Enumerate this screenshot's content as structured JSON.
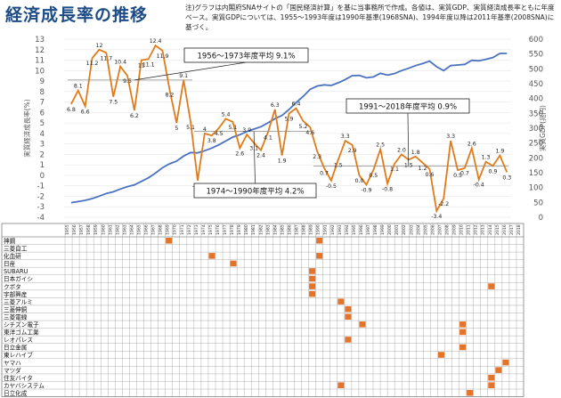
{
  "title": "経済成長率の推移",
  "note": "注)グラフは内閣府SNAサイトの「国民経済計算」を基に当事務所で作成。各値は、実質GDP、実質経済成長率ともに年度ベース。実質GDPについては、1955～1993年度は1990年基準(1968SNA)、1994年度以降は2011年基準(2008SNA)に基づく。",
  "chart_data": {
    "type": "line",
    "x": [
      1956,
      1957,
      1958,
      1959,
      1960,
      1961,
      1962,
      1963,
      1964,
      1965,
      1966,
      1967,
      1968,
      1969,
      1970,
      1971,
      1972,
      1973,
      1974,
      1975,
      1976,
      1977,
      1978,
      1979,
      1980,
      1981,
      1982,
      1983,
      1984,
      1985,
      1986,
      1987,
      1988,
      1989,
      1990,
      1991,
      1992,
      1993,
      1994,
      1995,
      1996,
      1997,
      1998,
      1999,
      2000,
      2001,
      2002,
      2003,
      2004,
      2005,
      2006,
      2007,
      2008,
      2009,
      2010,
      2011,
      2012,
      2013,
      2014,
      2015,
      2016,
      2017,
      2018
    ],
    "series": [
      {
        "name": "growth",
        "axis": "left",
        "color": "#e07b1a",
        "values": [
          6.8,
          8.1,
          6.6,
          11.2,
          12.0,
          11.7,
          7.5,
          10.4,
          9.5,
          6.2,
          11.0,
          11.1,
          12.4,
          11.9,
          8.2,
          5.0,
          9.1,
          5.1,
          -0.5,
          4.0,
          3.8,
          4.5,
          5.4,
          5.1,
          2.6,
          3.9,
          3.1,
          2.4,
          4.1,
          6.3,
          1.9,
          5.9,
          6.4,
          5.2,
          4.6,
          2.3,
          0.7,
          -0.5,
          1.5,
          3.3,
          2.9,
          0.0,
          -0.9,
          0.5,
          2.5,
          -0.8,
          1.1,
          2.0,
          1.5,
          1.8,
          1.2,
          0.6,
          -3.4,
          -2.2,
          3.3,
          0.5,
          0.7,
          2.6,
          -0.4,
          1.3,
          0.9,
          1.9,
          0.3
        ]
      },
      {
        "name": "gdp",
        "axis": "right",
        "color": "#4a72c2",
        "values": [
          49,
          53,
          57,
          63,
          71,
          80,
          86,
          95,
          103,
          109,
          121,
          133,
          149,
          167,
          180,
          189,
          206,
          218,
          217,
          224,
          233,
          244,
          257,
          270,
          278,
          289,
          297,
          305,
          318,
          332,
          343,
          363,
          386,
          407,
          431,
          442,
          446,
          444,
          453,
          464,
          477,
          478,
          470,
          473,
          485,
          479,
          484,
          494,
          502,
          511,
          518,
          526,
          507,
          494,
          511,
          513,
          515,
          529,
          527,
          532,
          538,
          552,
          552
        ],
        "labels_shown": false
      }
    ],
    "data_labels": [
      "6.8",
      "8.1",
      "6.6",
      "11.2",
      "12",
      "11.7",
      "7.5",
      "10.4",
      "9.5",
      "6.2",
      "11",
      "11.1",
      "12.4",
      "11.9",
      "8.2",
      "5",
      "9.1",
      "5.1",
      "-0.5",
      "4",
      "3.8",
      "4.5",
      "5.4",
      "5.1",
      "2.6",
      "3.9",
      "3.1",
      "2.4",
      "4.1",
      "6.3",
      "1.9",
      "5.9",
      "6.4",
      "5.2",
      "4.6",
      "2.3",
      "0.7",
      "-0.5",
      "1.5",
      "3.3",
      "2.9",
      "0.0",
      "-0.9",
      "0.5",
      "2.5",
      "-0.8",
      "1.1",
      "2.0",
      "1.5",
      "1.8",
      "1.2",
      "0.6",
      "-3.4",
      "-2.2",
      "3.3",
      "0.5",
      "0.7",
      "2.6",
      "-0.4",
      "1.3",
      "0.9",
      "1.9",
      "0.3"
    ],
    "left_axis": {
      "label": "実質経済成長率(%)",
      "ylim": [
        -4,
        13
      ],
      "ticks": [
        "-4",
        "-3",
        "-2",
        "-1",
        "0",
        "1",
        "2",
        "3",
        "4",
        "5",
        "6",
        "7",
        "8",
        "9",
        "10",
        "11",
        "12",
        "13"
      ]
    },
    "right_axis": {
      "label": "実質GDP(兆円)",
      "ylim": [
        0,
        600
      ],
      "ticks": [
        "0",
        "50",
        "100",
        "150",
        "200",
        "250",
        "300",
        "350",
        "400",
        "450",
        "500",
        "550",
        "600"
      ]
    },
    "period_averages": [
      {
        "label": "1956～1973年度平均",
        "value": "9.1%",
        "avg": 9.1,
        "from": 1956,
        "to": 1973
      },
      {
        "label": "1974～1990年度平均",
        "value": "4.2%",
        "avg": 4.2,
        "from": 1974,
        "to": 1990
      },
      {
        "label": "1991～2018年度平均",
        "value": "0.9%",
        "avg": 0.9,
        "from": 1991,
        "to": 2018
      }
    ]
  },
  "company_grid": {
    "years": [
      "1955",
      "1956",
      "1957",
      "1958",
      "1959",
      "1960",
      "1961",
      "1962",
      "1963",
      "1964",
      "1965",
      "1966",
      "1967",
      "1968",
      "1969",
      "1970",
      "1971",
      "1972",
      "1973",
      "1974",
      "1975",
      "1976",
      "1977",
      "1978",
      "1979",
      "1980",
      "1981",
      "1982",
      "1983",
      "1984",
      "1985",
      "1986",
      "1987",
      "1988",
      "1989",
      "1990",
      "1991",
      "1992",
      "1993",
      "1994",
      "1995",
      "1996",
      "1997",
      "1998",
      "1999",
      "2000",
      "2001",
      "2002",
      "2003",
      "2004",
      "2005",
      "2006",
      "2007",
      "2008",
      "2009",
      "2010",
      "2011",
      "2012",
      "2013",
      "2014",
      "2015",
      "2016",
      "2017",
      "2018"
    ],
    "mark_color": "#e4742a",
    "companies": [
      {
        "name": "神鋼",
        "marks": [
          "1969",
          "1990"
        ]
      },
      {
        "name": "三菱自工",
        "marks": []
      },
      {
        "name": "化血研",
        "marks": [
          "1975",
          "1990"
        ]
      },
      {
        "name": "日産",
        "marks": [
          "1978"
        ]
      },
      {
        "name": "SUBARU",
        "marks": [
          "1989"
        ]
      },
      {
        "name": "日本ガイシ",
        "marks": [
          "1989"
        ]
      },
      {
        "name": "クボタ",
        "marks": [
          "1989",
          "2014"
        ]
      },
      {
        "name": "宇部興産",
        "marks": [
          "1989"
        ]
      },
      {
        "name": "三菱アルミ",
        "marks": [
          "1993"
        ]
      },
      {
        "name": "三菱伸銅",
        "marks": [
          "1994"
        ]
      },
      {
        "name": "三菱電線",
        "marks": [
          "1994"
        ]
      },
      {
        "name": "シチズン電子",
        "marks": [
          "1996",
          "2010"
        ]
      },
      {
        "name": "東洋ゴム工業",
        "marks": [
          "2010"
        ]
      },
      {
        "name": "レオパレス",
        "marks": [
          "1994"
        ]
      },
      {
        "name": "日立金属",
        "marks": [
          "2010"
        ]
      },
      {
        "name": "東レハイブ",
        "marks": [
          "2007"
        ]
      },
      {
        "name": "ヤマハ",
        "marks": [
          "2016"
        ]
      },
      {
        "name": "マツダ",
        "marks": [
          "2015"
        ]
      },
      {
        "name": "住友バイタ",
        "marks": [
          "2014"
        ]
      },
      {
        "name": "カヤバシステム",
        "marks": [
          "1993",
          "2014"
        ]
      },
      {
        "name": "日立化成",
        "marks": [
          "2011"
        ]
      }
    ]
  }
}
